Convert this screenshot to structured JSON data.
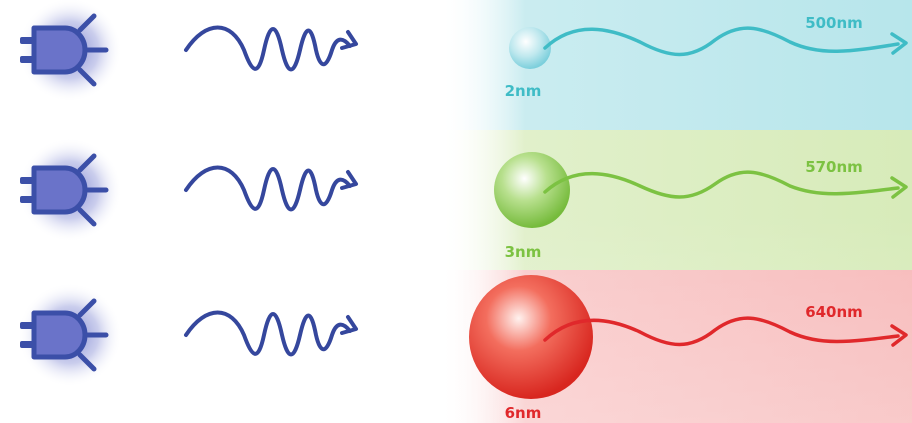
{
  "rows": [
    {
      "size_label": "2nm",
      "emission_label": "500nm",
      "color": "#3fbcc6",
      "glow_color": "#9fdde4",
      "particle_color": "#7ccfdc"
    },
    {
      "size_label": "3nm",
      "emission_label": "570nm",
      "color": "#7cc242",
      "glow_color": "#cde6a8",
      "particle_color": "#86c54a"
    },
    {
      "size_label": "6nm",
      "emission_label": "640nm",
      "color": "#e0282b",
      "glow_color": "#f5a9a9",
      "particle_color": "#e8362f"
    }
  ],
  "colors": {
    "lamp": "#3b4fa8",
    "lamp_glow": "#6a73c9",
    "excitation_wave": "#35479d"
  },
  "icons": {
    "lamp": "uv-lamp-icon",
    "wave": "excitation-wave-icon",
    "particle": "quantum-dot-icon",
    "emission": "emission-wave-icon"
  }
}
